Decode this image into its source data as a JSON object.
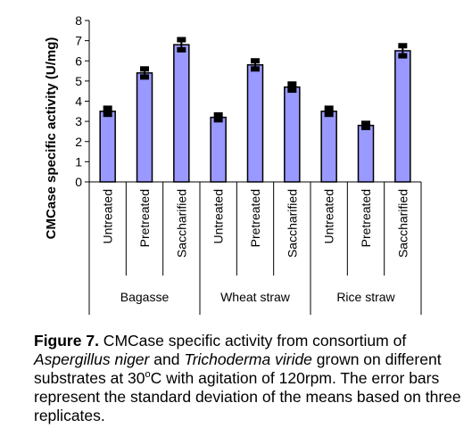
{
  "chart_data": {
    "type": "bar",
    "ylabel": "CMCase specific activity (U/mg)",
    "ylim": [
      0,
      8
    ],
    "yticks": [
      "0",
      "1",
      "2",
      "3",
      "4",
      "5",
      "6",
      "7",
      "8"
    ],
    "bar_color": "#9999ff",
    "groups": [
      {
        "name": "Bagasse",
        "categories": [
          "Untreated",
          "Pretreated",
          "Saccharified"
        ],
        "values": [
          3.5,
          5.4,
          6.8
        ],
        "errors": [
          0.15,
          0.2,
          0.25
        ]
      },
      {
        "name": "Wheat straw",
        "categories": [
          "Untreated",
          "Pretreated",
          "Saccharified"
        ],
        "values": [
          3.2,
          5.8,
          4.7
        ],
        "errors": [
          0.12,
          0.2,
          0.15
        ]
      },
      {
        "name": "Rice straw",
        "categories": [
          "Untreated",
          "Pretreated",
          "Saccharified"
        ],
        "values": [
          3.5,
          2.8,
          6.5
        ],
        "errors": [
          0.15,
          0.1,
          0.25
        ]
      }
    ]
  },
  "caption": {
    "label": "Figure 7.",
    "part1": " CMCase specific activity from consortium of ",
    "species1": "Aspergillus niger",
    "part2": " and ",
    "species2": "Trichoderma viride",
    "part3": " grown on different substrates at 30",
    "degree": "o",
    "part4": "C with agitation of 120rpm. The error bars represent the standard deviation of the means based on three replicates."
  }
}
